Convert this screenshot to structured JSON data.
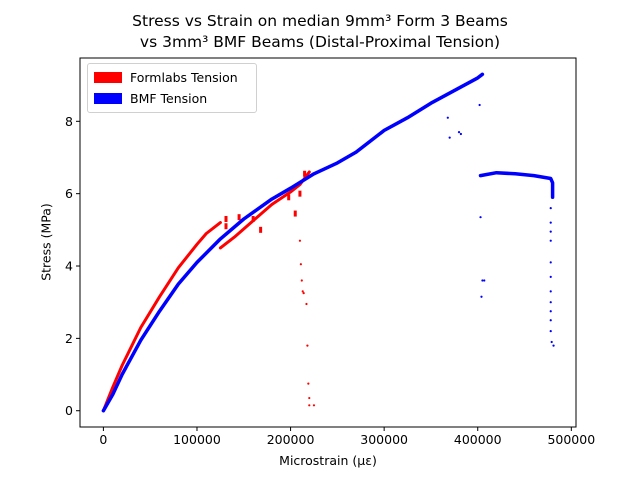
{
  "chart_data": {
    "type": "scatter",
    "title": "Stress vs Strain on median 9mm³ Form 3 Beams",
    "subtitle": "vs 3mm³ BMF Beams (Distal-Proximal Tension)",
    "xlabel": "Microstrain (με)",
    "ylabel": "Stress (MPa)",
    "xlim": [
      -25000,
      505000
    ],
    "ylim": [
      -0.45,
      9.75
    ],
    "xticks": [
      0,
      100000,
      200000,
      300000,
      400000,
      500000
    ],
    "yticks": [
      0,
      2,
      4,
      6,
      8
    ],
    "legend_position": "top-left",
    "grid": false,
    "series": [
      {
        "name": "Formlabs Tension",
        "color": "#ff0000",
        "curve": [
          [
            0,
            0
          ],
          [
            10000,
            0.65
          ],
          [
            20000,
            1.25
          ],
          [
            40000,
            2.3
          ],
          [
            60000,
            3.15
          ],
          [
            80000,
            3.95
          ],
          [
            100000,
            4.6
          ],
          [
            110000,
            4.9
          ],
          [
            125000,
            5.2
          ]
        ],
        "curve2": [
          [
            125000,
            4.5
          ],
          [
            140000,
            4.8
          ],
          [
            160000,
            5.25
          ],
          [
            180000,
            5.7
          ],
          [
            200000,
            6.05
          ],
          [
            210000,
            6.25
          ],
          [
            220000,
            6.6
          ]
        ],
        "clusters": [
          [
            131000,
            5.3
          ],
          [
            131000,
            5.1
          ],
          [
            145000,
            5.35
          ],
          [
            160000,
            5.3
          ],
          [
            168000,
            5.0
          ],
          [
            198000,
            5.9
          ],
          [
            205000,
            5.45
          ],
          [
            210000,
            6.0
          ],
          [
            215000,
            6.55
          ]
        ],
        "drop_points": [
          [
            210000,
            4.7
          ],
          [
            211000,
            4.05
          ],
          [
            212000,
            3.6
          ],
          [
            213000,
            3.3
          ],
          [
            214000,
            3.25
          ],
          [
            217000,
            2.95
          ],
          [
            218000,
            1.8
          ],
          [
            219000,
            0.75
          ],
          [
            220000,
            0.35
          ],
          [
            220000,
            0.15
          ],
          [
            225000,
            0.15
          ]
        ]
      },
      {
        "name": "BMF Tension",
        "color": "#0000ff",
        "curve": [
          [
            0,
            0
          ],
          [
            10000,
            0.45
          ],
          [
            20000,
            1.0
          ],
          [
            40000,
            1.95
          ],
          [
            60000,
            2.75
          ],
          [
            80000,
            3.5
          ],
          [
            100000,
            4.1
          ],
          [
            125000,
            4.75
          ],
          [
            150000,
            5.3
          ],
          [
            180000,
            5.85
          ],
          [
            200000,
            6.15
          ],
          [
            225000,
            6.55
          ],
          [
            250000,
            6.85
          ],
          [
            270000,
            7.15
          ],
          [
            300000,
            7.75
          ],
          [
            325000,
            8.1
          ],
          [
            350000,
            8.5
          ],
          [
            375000,
            8.85
          ],
          [
            400000,
            9.2
          ],
          [
            405000,
            9.3
          ]
        ],
        "plateau": [
          [
            403000,
            6.5
          ],
          [
            420000,
            6.58
          ],
          [
            440000,
            6.55
          ],
          [
            460000,
            6.5
          ],
          [
            478000,
            6.42
          ],
          [
            480000,
            6.3
          ],
          [
            480000,
            5.9
          ]
        ],
        "drop_points": [
          [
            368000,
            8.1
          ],
          [
            370000,
            7.55
          ],
          [
            380000,
            7.7
          ],
          [
            382000,
            7.65
          ],
          [
            402000,
            8.45
          ],
          [
            403000,
            5.35
          ],
          [
            405000,
            3.6
          ],
          [
            407000,
            3.6
          ],
          [
            404000,
            3.15
          ],
          [
            478000,
            5.6
          ],
          [
            478000,
            5.2
          ],
          [
            478000,
            4.95
          ],
          [
            478000,
            4.7
          ],
          [
            478000,
            4.1
          ],
          [
            478000,
            3.7
          ],
          [
            478000,
            3.3
          ],
          [
            478000,
            3.0
          ],
          [
            478000,
            2.75
          ],
          [
            478000,
            2.5
          ],
          [
            478000,
            2.2
          ],
          [
            479000,
            1.9
          ],
          [
            481000,
            1.8
          ]
        ]
      }
    ]
  }
}
